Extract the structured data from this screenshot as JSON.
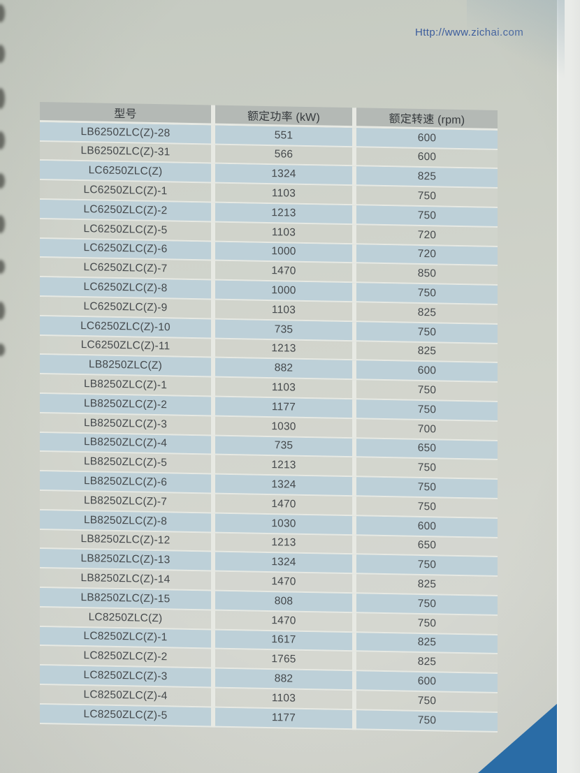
{
  "page": {
    "url": "Http://www.zichai.com"
  },
  "table": {
    "headers": [
      "型号",
      "额定功率 (kW)",
      "额定转速 (rpm)"
    ],
    "rows": [
      [
        "LB6250ZLC(Z)-28",
        "551",
        "600"
      ],
      [
        "LB6250ZLC(Z)-31",
        "566",
        "600"
      ],
      [
        "LC6250ZLC(Z)",
        "1324",
        "825"
      ],
      [
        "LC6250ZLC(Z)-1",
        "1103",
        "750"
      ],
      [
        "LC6250ZLC(Z)-2",
        "1213",
        "750"
      ],
      [
        "LC6250ZLC(Z)-5",
        "1103",
        "720"
      ],
      [
        "LC6250ZLC(Z)-6",
        "1000",
        "720"
      ],
      [
        "LC6250ZLC(Z)-7",
        "1470",
        "850"
      ],
      [
        "LC6250ZLC(Z)-8",
        "1000",
        "750"
      ],
      [
        "LC6250ZLC(Z)-9",
        "1103",
        "825"
      ],
      [
        "LC6250ZLC(Z)-10",
        "735",
        "750"
      ],
      [
        "LC6250ZLC(Z)-11",
        "1213",
        "825"
      ],
      [
        "LB8250ZLC(Z)",
        "882",
        "600"
      ],
      [
        "LB8250ZLC(Z)-1",
        "1103",
        "750"
      ],
      [
        "LB8250ZLC(Z)-2",
        "1177",
        "750"
      ],
      [
        "LB8250ZLC(Z)-3",
        "1030",
        "700"
      ],
      [
        "LB8250ZLC(Z)-4",
        "735",
        "650"
      ],
      [
        "LB8250ZLC(Z)-5",
        "1213",
        "750"
      ],
      [
        "LB8250ZLC(Z)-6",
        "1324",
        "750"
      ],
      [
        "LB8250ZLC(Z)-7",
        "1470",
        "750"
      ],
      [
        "LB8250ZLC(Z)-8",
        "1030",
        "600"
      ],
      [
        "LB8250ZLC(Z)-12",
        "1213",
        "650"
      ],
      [
        "LB8250ZLC(Z)-13",
        "1324",
        "750"
      ],
      [
        "LB8250ZLC(Z)-14",
        "1470",
        "825"
      ],
      [
        "LB8250ZLC(Z)-15",
        "808",
        "750"
      ],
      [
        "LC8250ZLC(Z)",
        "1470",
        "750"
      ],
      [
        "LC8250ZLC(Z)-1",
        "1617",
        "825"
      ],
      [
        "LC8250ZLC(Z)-2",
        "1765",
        "825"
      ],
      [
        "LC8250ZLC(Z)-3",
        "882",
        "600"
      ],
      [
        "LC8250ZLC(Z)-4",
        "1103",
        "750"
      ],
      [
        "LC8250ZLC(Z)-5",
        "1177",
        "750"
      ]
    ]
  },
  "colors": {
    "stripe": "#bdd0d8",
    "header_bg": "#b4b9b5",
    "triangle": "#2a6ca6",
    "url_color": "#3c5c9c"
  }
}
